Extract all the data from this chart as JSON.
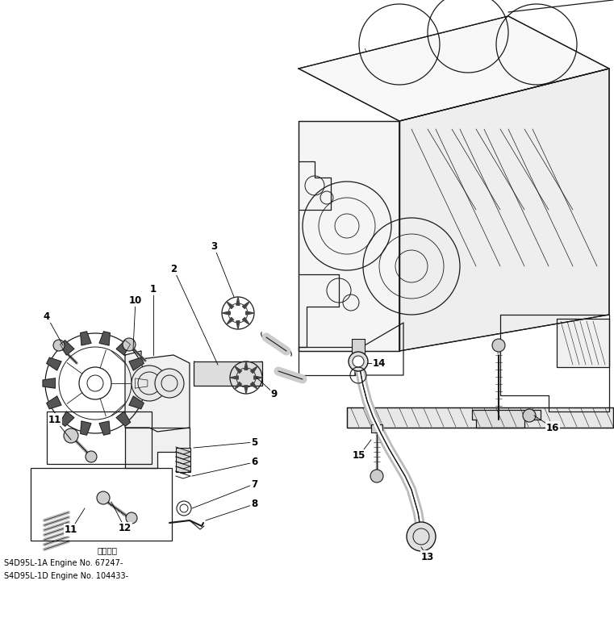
{
  "bg_color": "#ffffff",
  "line_color": "#1a1a1a",
  "fig_width": 7.61,
  "fig_height": 7.87,
  "dpi": 100,
  "note_line1": "適用号機",
  "note_line2": "S4D95L-1A Engine No. 67247-",
  "note_line3": "S4D95L-1D Engine No. 104433-"
}
